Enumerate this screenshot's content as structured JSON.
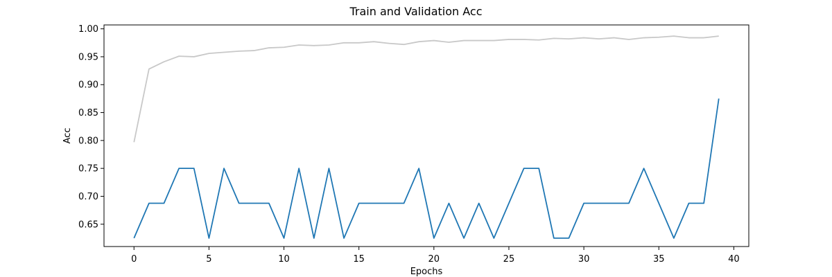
{
  "chart_data": {
    "type": "line",
    "title": "Train and Validation Acc",
    "xlabel": "Epochs",
    "ylabel": "Acc",
    "xlim": [
      -2,
      41
    ],
    "ylim": [
      0.61,
      1.007
    ],
    "xticks": [
      0,
      5,
      10,
      15,
      20,
      25,
      30,
      35,
      40
    ],
    "yticks": [
      0.65,
      0.7,
      0.75,
      0.8,
      0.85,
      0.9,
      0.95,
      1.0
    ],
    "ytick_labels": [
      "0.65",
      "0.70",
      "0.75",
      "0.80",
      "0.85",
      "0.90",
      "0.95",
      "1.00"
    ],
    "grid": false,
    "legend": "none",
    "series": [
      {
        "color": "#c8c8c8",
        "x": [
          0,
          1,
          2,
          3,
          4,
          5,
          6,
          7,
          8,
          9,
          10,
          11,
          12,
          13,
          14,
          15,
          16,
          17,
          18,
          19,
          20,
          21,
          22,
          23,
          24,
          25,
          26,
          27,
          28,
          29,
          30,
          31,
          32,
          33,
          34,
          35,
          36,
          37,
          38,
          39
        ],
        "values": [
          0.797,
          0.928,
          0.941,
          0.951,
          0.95,
          0.956,
          0.958,
          0.96,
          0.961,
          0.966,
          0.967,
          0.971,
          0.97,
          0.971,
          0.975,
          0.975,
          0.977,
          0.974,
          0.972,
          0.977,
          0.979,
          0.976,
          0.979,
          0.979,
          0.979,
          0.981,
          0.981,
          0.98,
          0.983,
          0.982,
          0.984,
          0.982,
          0.984,
          0.981,
          0.984,
          0.985,
          0.987,
          0.984,
          0.984,
          0.987
        ]
      },
      {
        "color": "#1f77b4",
        "x": [
          0,
          1,
          2,
          3,
          4,
          5,
          6,
          7,
          8,
          9,
          10,
          11,
          12,
          13,
          14,
          15,
          16,
          17,
          18,
          19,
          20,
          21,
          22,
          23,
          24,
          25,
          26,
          27,
          28,
          29,
          30,
          31,
          32,
          33,
          34,
          35,
          36,
          37,
          38,
          39
        ],
        "values": [
          0.625,
          0.6875,
          0.6875,
          0.75,
          0.75,
          0.625,
          0.75,
          0.6875,
          0.6875,
          0.6875,
          0.625,
          0.75,
          0.625,
          0.75,
          0.625,
          0.6875,
          0.6875,
          0.6875,
          0.6875,
          0.75,
          0.625,
          0.6875,
          0.625,
          0.6875,
          0.625,
          0.6875,
          0.75,
          0.75,
          0.625,
          0.625,
          0.6875,
          0.6875,
          0.6875,
          0.6875,
          0.75,
          0.6875,
          0.625,
          0.6875,
          0.6875,
          0.875
        ]
      }
    ]
  }
}
